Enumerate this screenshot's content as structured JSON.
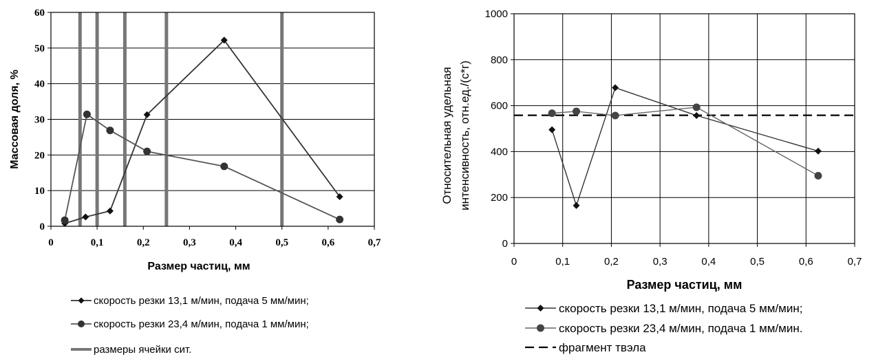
{
  "chart_data": [
    {
      "type": "line",
      "xlabel": "Размер частиц, мм",
      "ylabel": "Массовая доля, %",
      "xlim": [
        0,
        0.7
      ],
      "ylim": [
        0,
        60
      ],
      "x_ticks": [
        "0",
        "0,1",
        "0,2",
        "0,3",
        "0,4",
        "0,5",
        "0,6",
        "0,7"
      ],
      "y_ticks": [
        "0",
        "10",
        "20",
        "30",
        "40",
        "50",
        "60"
      ],
      "grid": "horizontal",
      "legend_placement": "bottom",
      "series": [
        {
          "name": "скорость резки 13,1 м/мин, подача 5 мм/мин;",
          "marker": "diamond",
          "color": "#333333",
          "x": [
            0.03,
            0.075,
            0.128,
            0.208,
            0.375,
            0.625
          ],
          "y": [
            0.8,
            2.6,
            4.3,
            31.3,
            52.2,
            8.3
          ]
        },
        {
          "name": "скорость резки 23,4 м/мин, подача 1 мм/мин;",
          "marker": "circle",
          "color": "#555555",
          "x": [
            0.03,
            0.078,
            0.128,
            0.208,
            0.375,
            0.625
          ],
          "y": [
            1.7,
            31.4,
            26.9,
            21.0,
            16.8,
            1.9
          ]
        }
      ],
      "reference_lines": {
        "name": "размеры ячейки сит.",
        "color": "#777777",
        "x": [
          0.063,
          0.1,
          0.16,
          0.25,
          0.5
        ]
      }
    },
    {
      "type": "line",
      "xlabel": "Размер частиц, мм",
      "ylabel": "Относительная удельная интенсивность, отн.ед./(с*г)",
      "ylabel_lines": [
        "Относительная удельная",
        "интенсивность, отн.ед./(с*г)"
      ],
      "xlim": [
        0,
        0.7
      ],
      "ylim": [
        0,
        1000
      ],
      "x_ticks": [
        "0",
        "0,1",
        "0,2",
        "0,3",
        "0,4",
        "0,5",
        "0,6",
        "0,7"
      ],
      "y_ticks": [
        "0",
        "200",
        "400",
        "600",
        "800",
        "1000"
      ],
      "grid": "both",
      "legend_placement": "bottom",
      "series": [
        {
          "name": "скорость резки 13,1 м/мин, подача 5 мм/мин;",
          "marker": "diamond",
          "color": "#333333",
          "x": [
            0.078,
            0.128,
            0.208,
            0.375,
            0.625
          ],
          "y": [
            495,
            165,
            678,
            557,
            402
          ]
        },
        {
          "name": "скорость резки 23,4 м/мин, подача 1 мм/мин.",
          "marker": "circle",
          "color": "#666666",
          "x": [
            0.078,
            0.128,
            0.208,
            0.375,
            0.625
          ],
          "y": [
            567,
            575,
            557,
            593,
            295
          ]
        }
      ],
      "reference_lines": {
        "name": "фрагмент твэла",
        "color": "#000000",
        "style": "dashed",
        "y": 558
      }
    }
  ]
}
